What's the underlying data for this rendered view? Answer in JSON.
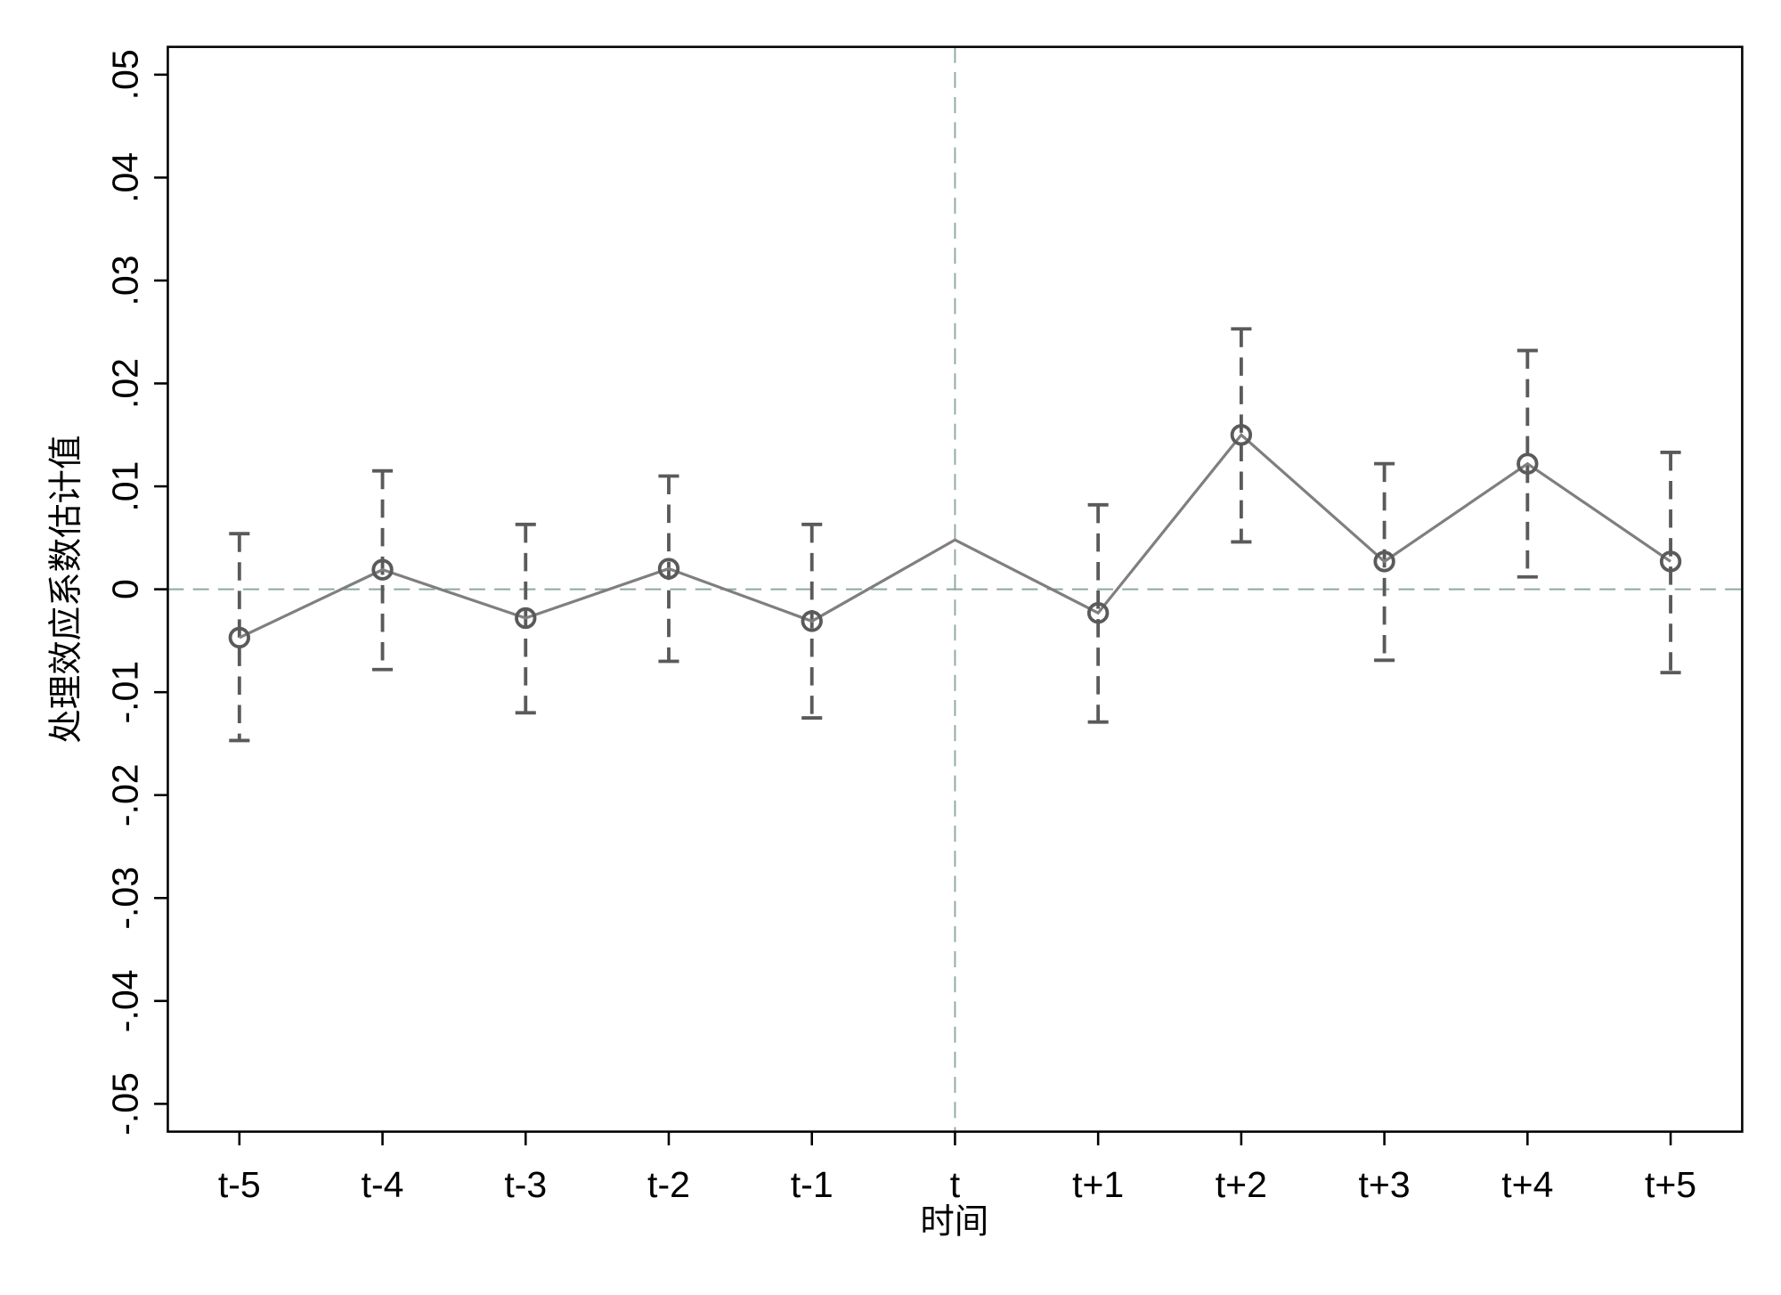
{
  "chart_data": {
    "type": "line",
    "x_label": "时间",
    "y_label": "处理效应系数估计值",
    "categories": [
      "t-5",
      "t-4",
      "t-3",
      "t-2",
      "t-1",
      "t",
      "t+1",
      "t+2",
      "t+3",
      "t+4",
      "t+5"
    ],
    "values": [
      -0.0047,
      0.0019,
      -0.0028,
      0.002,
      -0.0031,
      0.0048,
      -0.0023,
      0.015,
      0.0027,
      0.0122,
      0.0027
    ],
    "ci_low": [
      -0.0147,
      -0.0078,
      -0.012,
      -0.007,
      -0.0125,
      null,
      -0.0129,
      0.0046,
      -0.0069,
      0.0012,
      -0.0081
    ],
    "ci_high": [
      0.0054,
      0.0115,
      0.0063,
      0.011,
      0.0063,
      null,
      0.0082,
      0.0253,
      0.0122,
      0.0232,
      0.0133
    ],
    "color": "#7f7f7f",
    "ci_color": "#5a5a5a",
    "reference_color": "#8fa89f",
    "reference_lines": {
      "x": "t",
      "y": 0
    },
    "ylim": [
      -0.0527,
      0.0527
    ],
    "yticks": [
      {
        "value": -0.05,
        "label": "-.05"
      },
      {
        "value": -0.04,
        "label": "-.04"
      },
      {
        "value": -0.03,
        "label": "-.03"
      },
      {
        "value": -0.02,
        "label": "-.02"
      },
      {
        "value": -0.01,
        "label": "-.01"
      },
      0,
      {
        "value": 0.01,
        "label": ".01"
      },
      {
        "value": 0.02,
        "label": ".02"
      },
      {
        "value": 0.03,
        "label": ".03"
      },
      {
        "value": 0.04,
        "label": ".04"
      },
      {
        "value": 0.05,
        "label": ".05"
      }
    ]
  }
}
